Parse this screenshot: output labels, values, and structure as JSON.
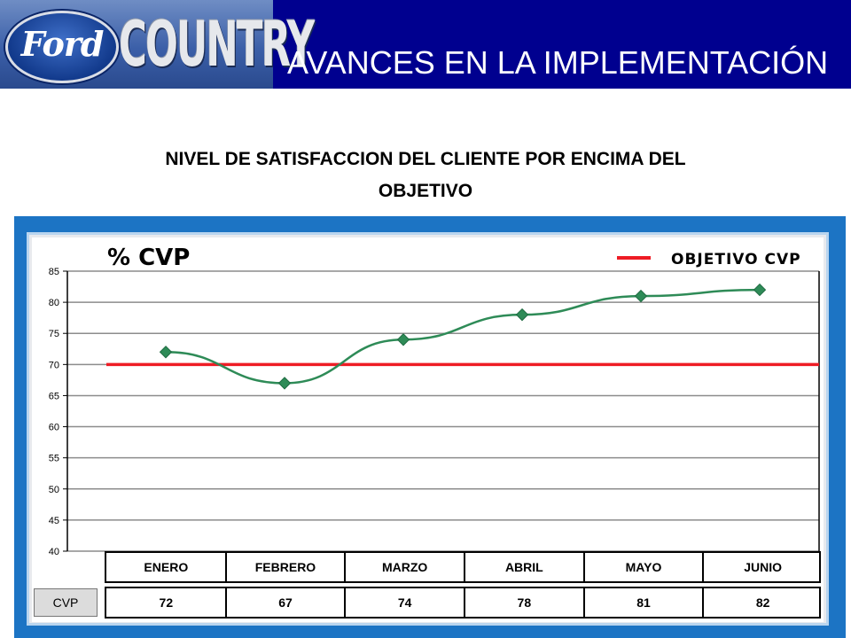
{
  "header": {
    "logo_ford": "Ford",
    "logo_country": "COUNTRY",
    "title": "AVANCES EN LA IMPLEMENTACIÓN"
  },
  "subtitle": {
    "line1": "NIVEL DE SATISFACCION DEL CLIENTE POR ENCIMA DEL",
    "line2": "OBJETIVO"
  },
  "colors": {
    "header_bg": "#00008f",
    "frame": "#1c74c4",
    "series_line": "#2e8b57",
    "target_line": "#ee1c25"
  },
  "chart_data": {
    "type": "line",
    "title": "% CVP",
    "categories": [
      "ENERO",
      "FEBRERO",
      "MARZO",
      "ABRIL",
      "MAYO",
      "JUNIO"
    ],
    "series": [
      {
        "name": "CVP",
        "values": [
          72,
          67,
          74,
          78,
          81,
          82
        ],
        "color": "#2e8b57",
        "marker": "diamond"
      }
    ],
    "target": {
      "name": "OBJETIVO CVP",
      "value": 70,
      "color": "#ee1c25"
    },
    "ylim": [
      40,
      85
    ],
    "yticks": [
      85,
      80,
      75,
      70,
      65,
      60,
      55,
      50,
      45,
      40
    ],
    "grid": true,
    "legend_position": "top-right",
    "table_row_label": "CVP",
    "table_values": [
      "72",
      "67",
      "74",
      "78",
      "81",
      "82"
    ]
  }
}
